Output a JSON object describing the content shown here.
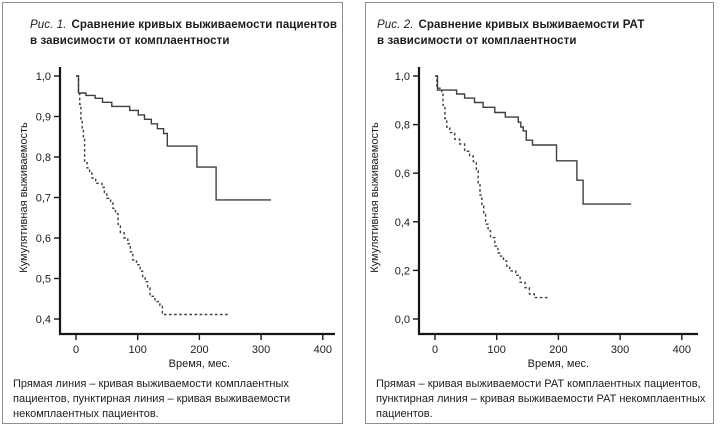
{
  "colors": {
    "curve": "#3f3f3f",
    "axis": "#161616",
    "border": "#8f8f8f",
    "text": "#1c1c1c"
  },
  "panels": [
    {
      "title_prefix": "Рис. 1.",
      "title_rest_line1": "Сравнение кривых выживаемости пациентов",
      "title_line2": "в зависимости от комплаентности",
      "caption_lines": [
        "Прямая линия – кривая выживаемости комплаентных",
        "пациентов, пунктирная линия – кривая выживаемости",
        "некомплаентных пациентов."
      ]
    },
    {
      "title_prefix": "Рис. 2.",
      "title_rest_line1": "Сравнение кривых выживаемости РАТ",
      "title_line2": "в зависимости от комплаентности",
      "caption_lines": [
        "Прямая – кривая выживаемости РАТ комплаентных пациентов,",
        "пунктирная линия – кривая выживаемости РАТ некомплаентных",
        "пациентов."
      ]
    }
  ],
  "chart_data": [
    {
      "type": "line",
      "subtype": "kaplan-meier-step",
      "title": "Сравнение кривых выживаемости пациентов в зависимости от комплаентности",
      "xlabel": "Время, мес.",
      "ylabel": "Кумулятивная выживаемость",
      "xlim": [
        -20,
        420
      ],
      "ylim": [
        0.4,
        1.0
      ],
      "grid": false,
      "legend_position": "none",
      "xticks": {
        "values": [
          0,
          100,
          200,
          300,
          400
        ],
        "labels": [
          "0",
          "100",
          "200",
          "300",
          "400"
        ]
      },
      "yticks": {
        "values": [
          1.0,
          0.9,
          0.8,
          0.7,
          0.6,
          0.5,
          0.4
        ],
        "labels": [
          "1,0",
          "0,9",
          "0,8",
          "0,7",
          "0,6",
          "0,5",
          "0,4"
        ]
      },
      "series": [
        {
          "name": "комплаентные пациенты (прямая линия)",
          "style": "solid",
          "end_x": 316,
          "points": [
            [
              0,
              1.0
            ],
            [
              4,
              0.958
            ],
            [
              16,
              0.952
            ],
            [
              31,
              0.945
            ],
            [
              43,
              0.935
            ],
            [
              58,
              0.925
            ],
            [
              87,
              0.915
            ],
            [
              101,
              0.904
            ],
            [
              111,
              0.893
            ],
            [
              122,
              0.882
            ],
            [
              132,
              0.87
            ],
            [
              142,
              0.858
            ],
            [
              148,
              0.827
            ],
            [
              196,
              0.775
            ],
            [
              227,
              0.694
            ]
          ]
        },
        {
          "name": "некомплаентные пациенты (пунктирная линия)",
          "style": "dashed",
          "end_x": 248,
          "points": [
            [
              0,
              1.0
            ],
            [
              4,
              0.963
            ],
            [
              6,
              0.93
            ],
            [
              8,
              0.89
            ],
            [
              10,
              0.868
            ],
            [
              12,
              0.848
            ],
            [
              14,
              0.786
            ],
            [
              18,
              0.773
            ],
            [
              22,
              0.76
            ],
            [
              26,
              0.748
            ],
            [
              32,
              0.735
            ],
            [
              42,
              0.725
            ],
            [
              46,
              0.712
            ],
            [
              50,
              0.698
            ],
            [
              56,
              0.686
            ],
            [
              60,
              0.673
            ],
            [
              64,
              0.66
            ],
            [
              68,
              0.634
            ],
            [
              72,
              0.613
            ],
            [
              78,
              0.6
            ],
            [
              84,
              0.586
            ],
            [
              88,
              0.566
            ],
            [
              92,
              0.546
            ],
            [
              98,
              0.534
            ],
            [
              104,
              0.518
            ],
            [
              108,
              0.505
            ],
            [
              112,
              0.492
            ],
            [
              116,
              0.477
            ],
            [
              120,
              0.456
            ],
            [
              128,
              0.443
            ],
            [
              136,
              0.433
            ],
            [
              140,
              0.411
            ]
          ]
        }
      ]
    },
    {
      "type": "line",
      "subtype": "kaplan-meier-step",
      "title": "Сравнение кривых выживаемости РАТ в зависимости от комплаентности",
      "xlabel": "Время, мес.",
      "ylabel": "Кумулятивная выживаемость",
      "xlim": [
        -20,
        420
      ],
      "ylim": [
        0.0,
        1.0
      ],
      "grid": false,
      "legend_position": "none",
      "xticks": {
        "values": [
          0,
          100,
          200,
          300,
          400
        ],
        "labels": [
          "0",
          "100",
          "200",
          "300",
          "400"
        ]
      },
      "yticks": {
        "values": [
          1.0,
          0.8,
          0.6,
          0.4,
          0.2,
          0.0
        ],
        "labels": [
          "1,0",
          "0,8",
          "0,6",
          "0,4",
          "0,2",
          "0,0"
        ]
      },
      "series": [
        {
          "name": "РАТ комплаентные пациенты (прямая)",
          "style": "solid",
          "end_x": 318,
          "points": [
            [
              0,
              1.0
            ],
            [
              4,
              0.942
            ],
            [
              35,
              0.926
            ],
            [
              48,
              0.909
            ],
            [
              64,
              0.891
            ],
            [
              78,
              0.871
            ],
            [
              97,
              0.85
            ],
            [
              114,
              0.831
            ],
            [
              135,
              0.81
            ],
            [
              139,
              0.79
            ],
            [
              143,
              0.774
            ],
            [
              148,
              0.736
            ],
            [
              158,
              0.716
            ],
            [
              197,
              0.651
            ],
            [
              230,
              0.571
            ],
            [
              240,
              0.473
            ]
          ]
        },
        {
          "name": "РАТ некомплаентные пациенты (пунктирная линия)",
          "style": "dashed",
          "end_x": 183,
          "points": [
            [
              0,
              1.0
            ],
            [
              3,
              0.95
            ],
            [
              11,
              0.93
            ],
            [
              13,
              0.88
            ],
            [
              16,
              0.825
            ],
            [
              19,
              0.79
            ],
            [
              24,
              0.767
            ],
            [
              32,
              0.74
            ],
            [
              40,
              0.72
            ],
            [
              48,
              0.69
            ],
            [
              56,
              0.67
            ],
            [
              62,
              0.648
            ],
            [
              67,
              0.61
            ],
            [
              70,
              0.56
            ],
            [
              73,
              0.51
            ],
            [
              76,
              0.465
            ],
            [
              79,
              0.43
            ],
            [
              82,
              0.39
            ],
            [
              86,
              0.363
            ],
            [
              90,
              0.335
            ],
            [
              97,
              0.3
            ],
            [
              102,
              0.272
            ],
            [
              106,
              0.259
            ],
            [
              111,
              0.239
            ],
            [
              116,
              0.218
            ],
            [
              121,
              0.198
            ],
            [
              131,
              0.18
            ],
            [
              138,
              0.151
            ],
            [
              146,
              0.129
            ],
            [
              153,
              0.103
            ],
            [
              161,
              0.088
            ]
          ]
        }
      ]
    }
  ]
}
